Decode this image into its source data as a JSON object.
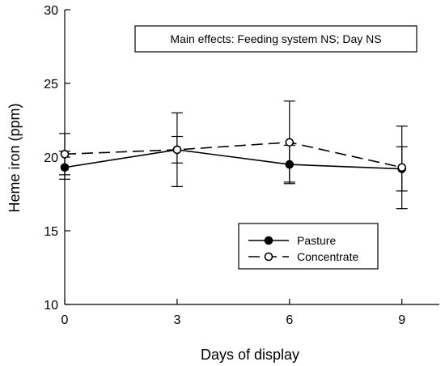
{
  "chart_data": {
    "type": "line",
    "title": "",
    "xlabel": "Days of display",
    "ylabel": "Heme iron (ppm)",
    "x": [
      0,
      3,
      6,
      9
    ],
    "x_ticks": [
      "0",
      "3",
      "6",
      "9"
    ],
    "xlim": [
      0,
      10
    ],
    "ylim": [
      10,
      30
    ],
    "y_ticks": [
      "10",
      "15",
      "20",
      "25",
      "30"
    ],
    "grid": false,
    "legend_position": "lower-right",
    "annotation": "Main effects: Feeding system NS; Day NS",
    "series": [
      {
        "name": "Pasture",
        "marker": "filled-circle",
        "line_style": "solid",
        "values": [
          19.3,
          20.5,
          19.5,
          19.2
        ],
        "error_low": [
          18.5,
          18.0,
          18.2,
          16.5
        ],
        "error_high": [
          21.6,
          23.0,
          20.8,
          22.1
        ]
      },
      {
        "name": "Concentrate",
        "marker": "open-circle",
        "line_style": "dashed",
        "values": [
          20.2,
          20.5,
          21.0,
          19.3
        ],
        "error_low": [
          18.8,
          19.6,
          18.3,
          17.7
        ],
        "error_high": [
          20.4,
          21.4,
          23.8,
          20.7
        ]
      }
    ]
  }
}
